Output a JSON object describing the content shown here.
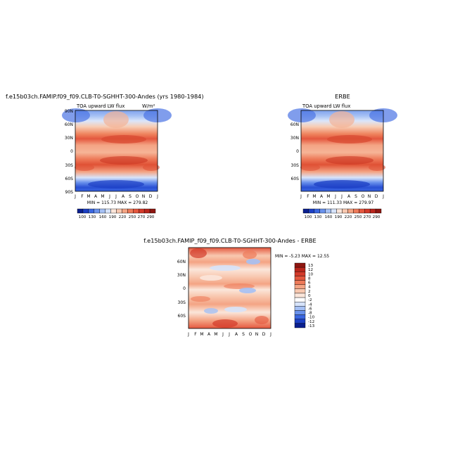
{
  "chart_data": [
    {
      "type": "heatmap",
      "id": "model",
      "title": "f.e15b03ch.FAMIP.f09_f09.CLB-T0-SGHHT-300-Andes (yrs 1980-1984)",
      "left_label": "TOA upward LW flux",
      "units": "W/m²",
      "x_ticks": [
        "J",
        "F",
        "M",
        "A",
        "M",
        "J",
        "J",
        "A",
        "S",
        "O",
        "N",
        "D",
        "J"
      ],
      "y_ticks": [
        "90N",
        "60N",
        "30N",
        "0",
        "30S",
        "60S",
        "90S"
      ],
      "stats": "MIN = 115.73  MAX = 279.82",
      "colorbar_labels": [
        "100",
        "130",
        "160",
        "190",
        "220",
        "250",
        "270",
        "290"
      ]
    },
    {
      "type": "heatmap",
      "id": "obs",
      "title": "ERBE",
      "left_label": "TOA upward LW flux",
      "x_ticks": [
        "J",
        "F",
        "M",
        "A",
        "M",
        "J",
        "J",
        "A",
        "S",
        "O",
        "N",
        "D",
        "J"
      ],
      "y_ticks": [
        "60N",
        "30N",
        "0",
        "30S",
        "60S"
      ],
      "stats": "MIN = 111.33  MAX = 279.97",
      "colorbar_labels": [
        "100",
        "130",
        "160",
        "190",
        "220",
        "250",
        "270",
        "290"
      ]
    },
    {
      "type": "heatmap",
      "id": "diff",
      "title": "f.e15b03ch.FAMIP_f09_f09.CLB-T0-SGHHT-300-Andes - ERBE",
      "x_ticks": [
        "J",
        "F",
        "M",
        "A",
        "M",
        "J",
        "J",
        "A",
        "S",
        "O",
        "N",
        "D",
        "J"
      ],
      "y_ticks": [
        "60N",
        "30N",
        "0",
        "30S",
        "60S"
      ],
      "stats": "MIN =  -5.23  MAX =  12.55",
      "colorbar_labels": [
        "13",
        "12",
        "10",
        "8",
        "6",
        "4",
        "2",
        "0",
        "-2",
        "-4",
        "-6",
        "-8",
        "-10",
        "-12",
        "-13"
      ]
    }
  ],
  "colors": {
    "abs_scale": [
      "#0a1f8f",
      "#1c3fc4",
      "#3a66e0",
      "#6a92ec",
      "#a5c0f4",
      "#d6e3fa",
      "#fbe6da",
      "#f8c8b0",
      "#f4a484",
      "#ee7b5a",
      "#e4573e",
      "#d33a2a",
      "#b9261c",
      "#8e1610"
    ],
    "diff_scale": [
      "#8e1610",
      "#b9261c",
      "#d33a2a",
      "#e4573e",
      "#ee7b5a",
      "#f4a484",
      "#f8c8b0",
      "#fbe6da",
      "#ffffff",
      "#d6e3fa",
      "#a5c0f4",
      "#6a92ec",
      "#3a66e0",
      "#1c3fc4",
      "#0a1f8f"
    ]
  }
}
